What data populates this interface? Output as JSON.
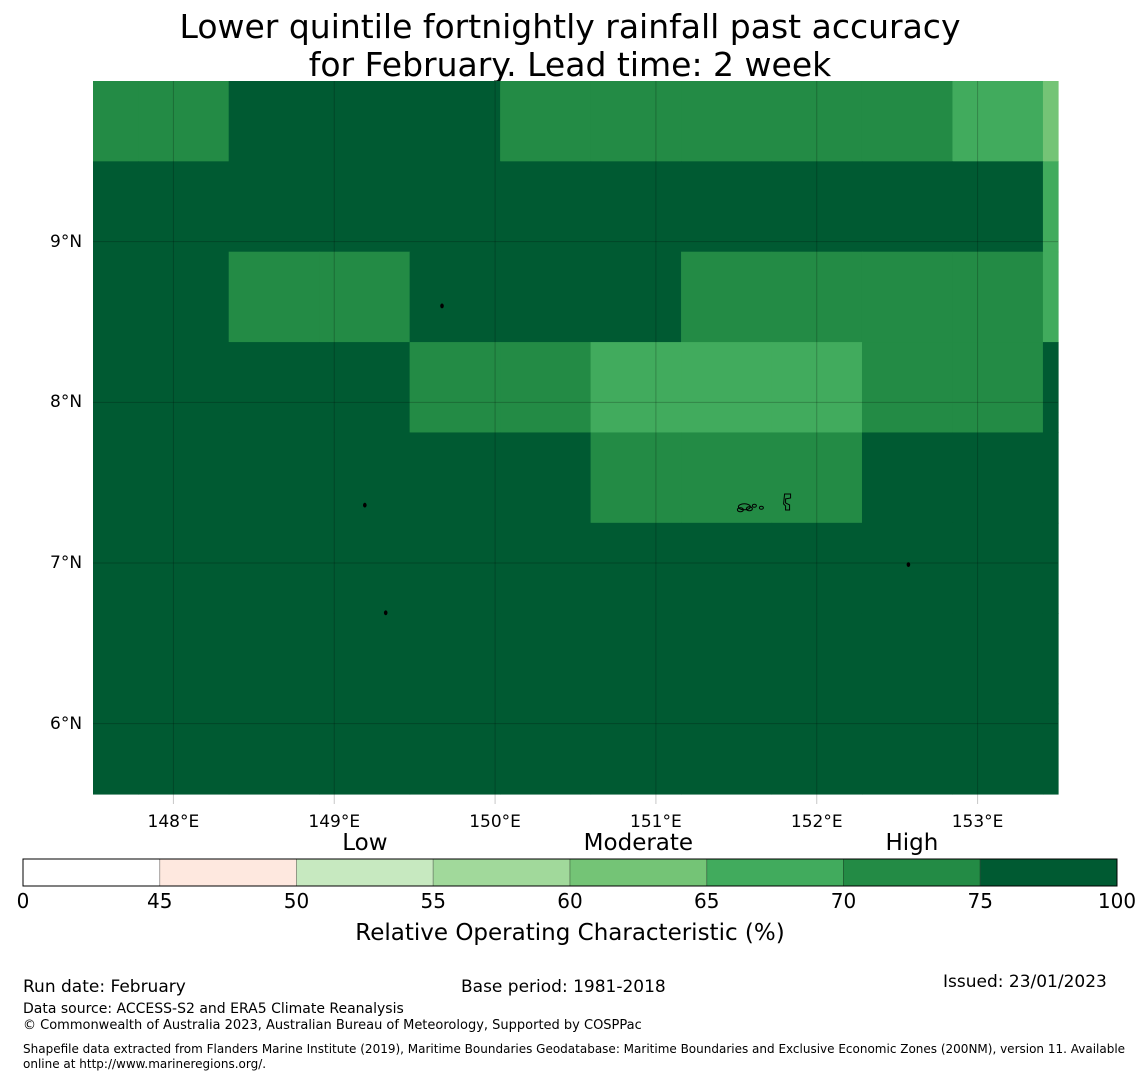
{
  "title_line1": "Lower quintile fortnightly rainfall past accuracy",
  "title_line2": "for February. Lead time: 2 week",
  "map": {
    "lat_labels": [
      "9°N",
      "8°N",
      "7°N",
      "6°N"
    ],
    "lat_values": [
      9,
      8,
      7,
      6
    ],
    "lon_labels": [
      "148°E",
      "149°E",
      "150°E",
      "151°E",
      "152°E",
      "153°E"
    ],
    "lon_values": [
      148,
      149,
      150,
      151,
      152,
      153
    ],
    "extent": {
      "lon_min": 147.5,
      "lon_max": 153.5,
      "lat_min": 5.5,
      "lat_max": 10.0
    },
    "grid_cell_deg": 0.5625,
    "roc_rows": [
      [
        70,
        70,
        75,
        75,
        75,
        70,
        70,
        70,
        70,
        70,
        65,
        60
      ],
      [
        75,
        75,
        75,
        75,
        75,
        75,
        75,
        75,
        75,
        75,
        75,
        65
      ],
      [
        75,
        75,
        70,
        70,
        75,
        75,
        75,
        70,
        70,
        70,
        70,
        65
      ],
      [
        75,
        75,
        75,
        75,
        70,
        70,
        65,
        65,
        65,
        70,
        70,
        75
      ],
      [
        75,
        75,
        75,
        75,
        75,
        75,
        70,
        70,
        70,
        75,
        75,
        75
      ],
      [
        75,
        75,
        75,
        75,
        75,
        75,
        75,
        75,
        75,
        75,
        75,
        75
      ],
      [
        75,
        75,
        75,
        75,
        75,
        75,
        75,
        75,
        75,
        75,
        75,
        75
      ],
      [
        75,
        75,
        75,
        75,
        75,
        75,
        75,
        75,
        75,
        75,
        75,
        75
      ]
    ],
    "islands": [
      {
        "name": "",
        "lon": 149.67,
        "lat": 8.6
      },
      {
        "name": "",
        "lon": 149.19,
        "lat": 7.36
      },
      {
        "name": "",
        "lon": 149.32,
        "lat": 6.69
      },
      {
        "name": "",
        "lon": 151.55,
        "lat": 7.35
      },
      {
        "name": "",
        "lon": 151.8,
        "lat": 7.38
      },
      {
        "name": "",
        "lon": 152.57,
        "lat": 6.99
      }
    ]
  },
  "colorbar": {
    "category_labels": [
      "Low",
      "Moderate",
      "High"
    ],
    "category_positions": [
      52.5,
      62.5,
      72.5
    ],
    "tick_labels": [
      "0",
      "45",
      "50",
      "55",
      "60",
      "65",
      "70",
      "75",
      "100"
    ],
    "bin_edges": [
      0,
      45,
      50,
      55,
      60,
      65,
      70,
      75,
      100
    ],
    "colors": [
      "#ffffff",
      "#fee8df",
      "#c7e9c0",
      "#a1d99b",
      "#74c476",
      "#41ab5d",
      "#238b45",
      "#005a32"
    ],
    "title": "Relative Operating Characteristic (%)"
  },
  "footer": {
    "run_date": "Run date: February",
    "base_period": "Base period: 1981-2018",
    "issued": "Issued: 23/01/2023",
    "data_source": "Data source: ACCESS-S2 and ERA5 Climate Reanalysis",
    "copyright": "© Commonwealth of Australia 2023, Australian Bureau of Meteorology, Supported by COSPPac",
    "shapefile_note": "Shapefile data extracted from Flanders Marine Institute (2019), Maritime Boundaries Geodatabase: Maritime Boundaries and Exclusive Economic Zones (200NM), version 11. Available online at http://www.marineregions.org/."
  }
}
